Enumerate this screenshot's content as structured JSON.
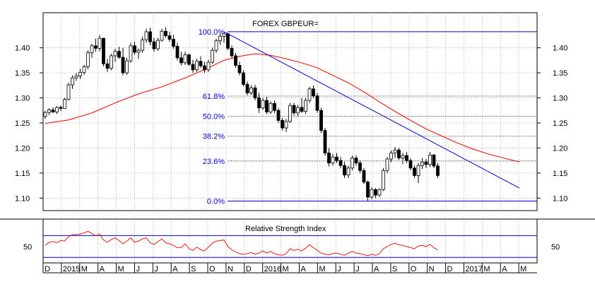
{
  "chart_data": {
    "type": "candlestick",
    "title": "FOREX GBPEUR=",
    "price_panel": {
      "y_ticks": [
        "1.10",
        "1.15",
        "1.20",
        "1.25",
        "1.30",
        "1.35",
        "1.40"
      ],
      "ylim": [
        1.075,
        1.47
      ],
      "moving_average_color": "#e8180c",
      "candles": [
        [
          1.263,
          1.274,
          1.258,
          1.271
        ],
        [
          1.271,
          1.279,
          1.266,
          1.276
        ],
        [
          1.276,
          1.281,
          1.27,
          1.272
        ],
        [
          1.272,
          1.284,
          1.268,
          1.281
        ],
        [
          1.281,
          1.285,
          1.274,
          1.279
        ],
        [
          1.279,
          1.3,
          1.278,
          1.297
        ],
        [
          1.297,
          1.33,
          1.295,
          1.326
        ],
        [
          1.326,
          1.345,
          1.318,
          1.34
        ],
        [
          1.34,
          1.35,
          1.334,
          1.344
        ],
        [
          1.344,
          1.358,
          1.338,
          1.351
        ],
        [
          1.351,
          1.366,
          1.346,
          1.362
        ],
        [
          1.362,
          1.395,
          1.357,
          1.39
        ],
        [
          1.39,
          1.408,
          1.38,
          1.404
        ],
        [
          1.404,
          1.418,
          1.392,
          1.399
        ],
        [
          1.399,
          1.426,
          1.393,
          1.419
        ],
        [
          1.419,
          1.42,
          1.363,
          1.368
        ],
        [
          1.368,
          1.378,
          1.352,
          1.359
        ],
        [
          1.359,
          1.388,
          1.355,
          1.384
        ],
        [
          1.384,
          1.398,
          1.372,
          1.393
        ],
        [
          1.393,
          1.402,
          1.378,
          1.381
        ],
        [
          1.381,
          1.4,
          1.345,
          1.35
        ],
        [
          1.35,
          1.38,
          1.346,
          1.374
        ],
        [
          1.374,
          1.41,
          1.37,
          1.404
        ],
        [
          1.404,
          1.412,
          1.386,
          1.391
        ],
        [
          1.391,
          1.399,
          1.378,
          1.395
        ],
        [
          1.395,
          1.422,
          1.39,
          1.416
        ],
        [
          1.416,
          1.438,
          1.41,
          1.432
        ],
        [
          1.432,
          1.44,
          1.405,
          1.412
        ],
        [
          1.412,
          1.42,
          1.392,
          1.398
        ],
        [
          1.398,
          1.42,
          1.394,
          1.415
        ],
        [
          1.415,
          1.438,
          1.412,
          1.433
        ],
        [
          1.433,
          1.441,
          1.42,
          1.424
        ],
        [
          1.424,
          1.432,
          1.412,
          1.417
        ],
        [
          1.417,
          1.426,
          1.398,
          1.403
        ],
        [
          1.403,
          1.41,
          1.375,
          1.38
        ],
        [
          1.38,
          1.392,
          1.365,
          1.37
        ],
        [
          1.37,
          1.392,
          1.366,
          1.386
        ],
        [
          1.386,
          1.388,
          1.364,
          1.367
        ],
        [
          1.367,
          1.376,
          1.35,
          1.356
        ],
        [
          1.356,
          1.378,
          1.352,
          1.373
        ],
        [
          1.373,
          1.383,
          1.36,
          1.364
        ],
        [
          1.364,
          1.372,
          1.35,
          1.356
        ],
        [
          1.356,
          1.376,
          1.352,
          1.371
        ],
        [
          1.371,
          1.4,
          1.368,
          1.395
        ],
        [
          1.395,
          1.418,
          1.39,
          1.414
        ],
        [
          1.414,
          1.428,
          1.406,
          1.423
        ],
        [
          1.423,
          1.432,
          1.41,
          1.428
        ],
        [
          1.428,
          1.43,
          1.395,
          1.399
        ],
        [
          1.399,
          1.405,
          1.38,
          1.384
        ],
        [
          1.384,
          1.39,
          1.36,
          1.365
        ],
        [
          1.365,
          1.372,
          1.345,
          1.35
        ],
        [
          1.35,
          1.355,
          1.323,
          1.327
        ],
        [
          1.327,
          1.333,
          1.305,
          1.31
        ],
        [
          1.31,
          1.325,
          1.306,
          1.32
        ],
        [
          1.32,
          1.326,
          1.295,
          1.3
        ],
        [
          1.3,
          1.31,
          1.27,
          1.28
        ],
        [
          1.28,
          1.3,
          1.276,
          1.295
        ],
        [
          1.295,
          1.302,
          1.268,
          1.272
        ],
        [
          1.272,
          1.293,
          1.268,
          1.289
        ],
        [
          1.289,
          1.295,
          1.27,
          1.275
        ],
        [
          1.275,
          1.28,
          1.25,
          1.255
        ],
        [
          1.255,
          1.26,
          1.235,
          1.24
        ],
        [
          1.24,
          1.258,
          1.232,
          1.253
        ],
        [
          1.253,
          1.29,
          1.25,
          1.285
        ],
        [
          1.285,
          1.29,
          1.265,
          1.27
        ],
        [
          1.27,
          1.286,
          1.264,
          1.281
        ],
        [
          1.281,
          1.3,
          1.27,
          1.273
        ],
        [
          1.273,
          1.3,
          1.268,
          1.295
        ],
        [
          1.295,
          1.322,
          1.29,
          1.318
        ],
        [
          1.318,
          1.325,
          1.3,
          1.304
        ],
        [
          1.304,
          1.31,
          1.27,
          1.275
        ],
        [
          1.275,
          1.28,
          1.23,
          1.235
        ],
        [
          1.235,
          1.24,
          1.185,
          1.19
        ],
        [
          1.19,
          1.2,
          1.163,
          1.17
        ],
        [
          1.17,
          1.188,
          1.165,
          1.182
        ],
        [
          1.182,
          1.19,
          1.17,
          1.175
        ],
        [
          1.175,
          1.182,
          1.16,
          1.165
        ],
        [
          1.165,
          1.172,
          1.14,
          1.146
        ],
        [
          1.146,
          1.165,
          1.14,
          1.16
        ],
        [
          1.16,
          1.185,
          1.155,
          1.18
        ],
        [
          1.18,
          1.185,
          1.165,
          1.17
        ],
        [
          1.17,
          1.175,
          1.15,
          1.155
        ],
        [
          1.155,
          1.16,
          1.128,
          1.132
        ],
        [
          1.132,
          1.135,
          1.095,
          1.102
        ],
        [
          1.102,
          1.122,
          1.098,
          1.117
        ],
        [
          1.117,
          1.12,
          1.1,
          1.106
        ],
        [
          1.106,
          1.12,
          1.102,
          1.117
        ],
        [
          1.117,
          1.16,
          1.114,
          1.155
        ],
        [
          1.155,
          1.182,
          1.15,
          1.178
        ],
        [
          1.178,
          1.195,
          1.172,
          1.19
        ],
        [
          1.19,
          1.202,
          1.18,
          1.196
        ],
        [
          1.196,
          1.2,
          1.176,
          1.18
        ],
        [
          1.18,
          1.19,
          1.168,
          1.185
        ],
        [
          1.185,
          1.192,
          1.17,
          1.175
        ],
        [
          1.175,
          1.18,
          1.155,
          1.16
        ],
        [
          1.16,
          1.165,
          1.14,
          1.145
        ],
        [
          1.145,
          1.17,
          1.13,
          1.165
        ],
        [
          1.165,
          1.18,
          1.158,
          1.172
        ],
        [
          1.172,
          1.178,
          1.16,
          1.167
        ],
        [
          1.167,
          1.192,
          1.162,
          1.186
        ],
        [
          1.186,
          1.188,
          1.16,
          1.164
        ],
        [
          1.164,
          1.17,
          1.14,
          1.145
        ]
      ],
      "moving_average": [
        [
          0,
          1.249
        ],
        [
          6,
          1.256
        ],
        [
          12,
          1.27
        ],
        [
          18,
          1.29
        ],
        [
          24,
          1.308
        ],
        [
          30,
          1.322
        ],
        [
          36,
          1.34
        ],
        [
          42,
          1.36
        ],
        [
          46,
          1.375
        ],
        [
          50,
          1.383
        ],
        [
          54,
          1.388
        ],
        [
          58,
          1.385
        ],
        [
          62,
          1.378
        ],
        [
          66,
          1.37
        ],
        [
          70,
          1.36
        ],
        [
          74,
          1.345
        ],
        [
          78,
          1.33
        ],
        [
          82,
          1.312
        ],
        [
          86,
          1.292
        ],
        [
          90,
          1.273
        ],
        [
          94,
          1.255
        ],
        [
          98,
          1.238
        ],
        [
          102,
          1.224
        ],
        [
          106,
          1.21
        ],
        [
          110,
          1.198
        ],
        [
          114,
          1.188
        ],
        [
          118,
          1.18
        ],
        [
          122,
          1.172
        ]
      ],
      "fibonacci": {
        "levels": [
          {
            "label": "100.0%",
            "value": 1.432
          },
          {
            "label": "61.8%",
            "value": 1.3035
          },
          {
            "label": "50.0%",
            "value": 1.2635
          },
          {
            "label": "38.2%",
            "value": 1.2235
          },
          {
            "label": "23.6%",
            "value": 1.174
          },
          {
            "label": "0.0%",
            "value": 1.094
          }
        ],
        "line_color": "#0000cc",
        "label_color": "#0000cc"
      },
      "trendline": {
        "start": [
          46,
          1.432
        ],
        "end": [
          122,
          1.12
        ],
        "color": "#0000cc"
      }
    },
    "rsi_panel": {
      "title": "Relative Strength Index",
      "y_ticks": [
        "50"
      ],
      "ylim": [
        20,
        90
      ],
      "upper_band": 70,
      "lower_band": 30,
      "band_color": "#0000cc",
      "line_color": "#e8180c",
      "values": [
        52,
        58,
        59,
        57,
        61,
        60,
        68,
        72,
        72,
        73,
        75,
        78,
        74,
        70,
        73,
        62,
        58,
        63,
        66,
        61,
        55,
        60,
        66,
        58,
        60,
        64,
        66,
        57,
        54,
        59,
        64,
        57,
        55,
        52,
        48,
        48,
        55,
        46,
        43,
        49,
        44,
        42,
        49,
        56,
        60,
        61,
        62,
        50,
        44,
        40,
        37,
        36,
        37,
        39,
        36,
        38,
        42,
        38,
        41,
        37,
        35,
        34,
        37,
        46,
        43,
        45,
        42,
        47,
        53,
        48,
        43,
        38,
        36,
        35,
        37,
        38,
        36,
        34,
        38,
        41,
        38,
        37,
        35,
        33,
        36,
        34,
        37,
        46,
        50,
        54,
        56,
        53,
        52,
        50,
        48,
        46,
        51,
        52,
        50,
        54,
        48,
        44
      ]
    },
    "x_axis": {
      "labels": [
        "D",
        "2015",
        "M",
        "A",
        "M",
        "J",
        "J",
        "A",
        "S",
        "O",
        "N",
        "D",
        "2016",
        "M",
        "A",
        "M",
        "J",
        "J",
        "A",
        "S",
        "O",
        "N",
        "D",
        "2017",
        "M",
        "A",
        "M"
      ]
    }
  }
}
